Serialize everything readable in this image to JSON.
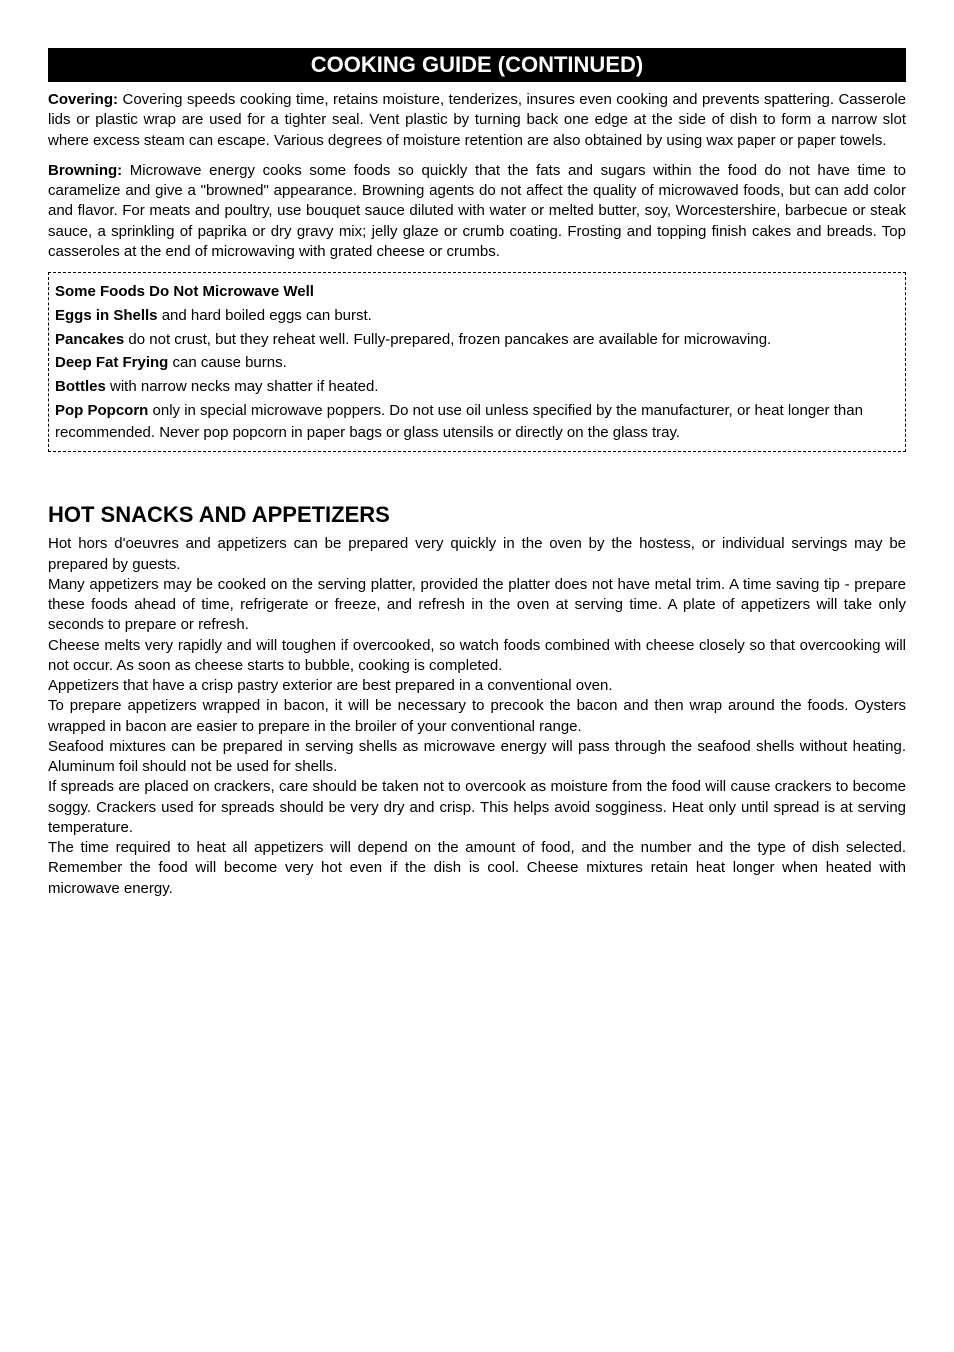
{
  "titleBar": "COOKING GUIDE (CONTINUED)",
  "paragraphs": {
    "covering": {
      "bold": "Covering:",
      "text": " Covering speeds cooking time, retains moisture, tenderizes, insures even cooking and prevents spattering. Casserole lids or plastic wrap are used for a tighter seal. Vent plastic by turning back one edge at the side of dish to form a narrow slot where excess steam can escape. Various degrees of moisture retention are also obtained by using wax paper or paper towels."
    },
    "browning": {
      "bold": "Browning:",
      "text": " Microwave energy cooks some foods so quickly that the fats and sugars within the food do not have time to caramelize and give a \"browned\" appearance. Browning agents do not affect the quality of microwaved foods, but can add color and flavor. For meats and poultry, use bouquet sauce diluted with water or melted butter, soy, Worcestershire, barbecue or steak sauce, a sprinkling of paprika or dry gravy mix; jelly glaze or crumb coating. Frosting and topping finish cakes and breads. Top casseroles at the end of microwaving with grated cheese or crumbs."
    }
  },
  "box": {
    "heading": "Some Foods Do Not Microwave Well",
    "items": [
      {
        "bold": "Eggs in Shells",
        "text": " and hard boiled eggs can burst."
      },
      {
        "bold": "Pancakes",
        "text": " do not crust, but they reheat well. Fully-prepared, frozen pancakes are available for microwaving."
      },
      {
        "bold": "Deep Fat Frying",
        "text": " can cause burns."
      },
      {
        "bold": "Bottles",
        "text": " with narrow necks may shatter if heated."
      },
      {
        "bold": "Pop Popcorn",
        "text": " only in special microwave poppers. Do not use oil unless specified by the manufacturer, or heat longer than recommended. Never pop popcorn in paper bags or glass utensils or directly on the glass tray."
      }
    ]
  },
  "section": {
    "heading": "HOT SNACKS AND APPETIZERS",
    "body": "Hot hors d'oeuvres and appetizers can be prepared very quickly in the oven by the hostess, or individual servings may be prepared by guests.\nMany appetizers may be cooked on the serving platter, provided the platter does not have metal trim. A time saving tip - prepare these foods ahead of time, refrigerate or freeze, and refresh in the oven at serving time. A plate of appetizers will take only seconds to prepare or refresh.\nCheese melts very rapidly and will toughen if overcooked, so watch foods combined with cheese closely so that overcooking will not occur. As soon as cheese starts to bubble, cooking is completed.\nAppetizers that have a crisp pastry exterior are best prepared in a conventional oven.\nTo prepare appetizers wrapped in bacon, it will be necessary to precook the bacon and then wrap around the foods. Oysters wrapped in bacon are easier to prepare in the broiler of your conventional range.\nSeafood mixtures can be prepared in serving shells as microwave energy will pass through the seafood shells without heating. Aluminum foil should not be used for shells.\nIf spreads are placed on crackers, care should be taken not to overcook as moisture from the food will cause crackers to become soggy. Crackers used for spreads should be very dry and crisp. This helps avoid sogginess. Heat only until spread is at serving temperature.\nThe time required to heat all appetizers will depend on the amount of food, and the number and the type of dish selected. Remember the food will become very hot even if the dish is cool. Cheese mixtures retain heat longer when heated with microwave energy."
  }
}
